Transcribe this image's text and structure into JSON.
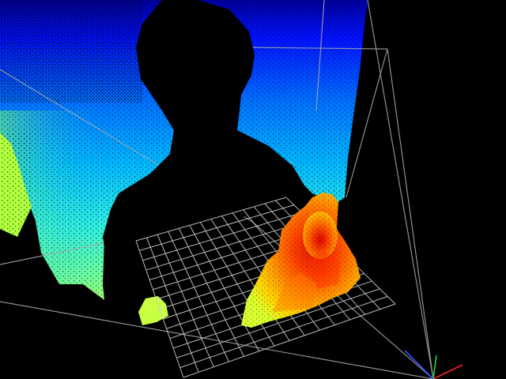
{
  "viewer": {
    "background_color": "#000000",
    "colormap": "jet",
    "colormap_stops": [
      "#00008f",
      "#0000ff",
      "#00b4ff",
      "#31ffcf",
      "#c8ff38",
      "#ffd000",
      "#ff6a00",
      "#e00000"
    ],
    "grid_color": "#cfcfcf",
    "frustum_line_color": "#a8a8a8",
    "axes": {
      "x_color": "#ff2020",
      "y_color": "#20e020",
      "z_color": "#3050ff"
    }
  }
}
